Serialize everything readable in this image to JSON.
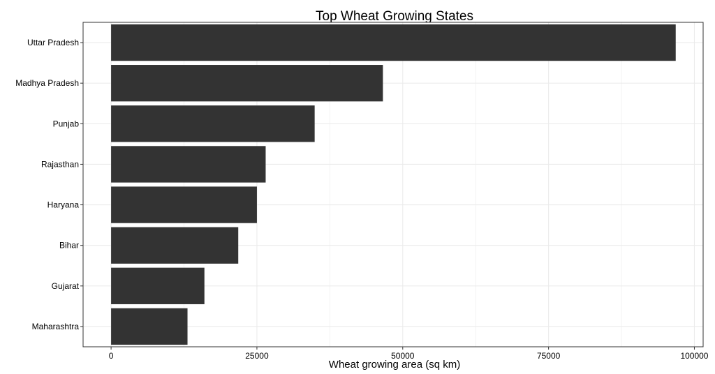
{
  "chart_data": {
    "type": "bar",
    "orientation": "horizontal",
    "title": "Top Wheat Growing States",
    "xlabel": "Wheat growing area (sq km)",
    "ylabel": "",
    "categories": [
      "Uttar Pradesh",
      "Madhya Pradesh",
      "Punjab",
      "Rajasthan",
      "Haryana",
      "Bihar",
      "Gujarat",
      "Maharashtra"
    ],
    "values": [
      96800,
      46600,
      34900,
      26500,
      25000,
      21800,
      16000,
      13100
    ],
    "xlim": [
      -4800,
      101500
    ],
    "xticks": [
      0,
      25000,
      50000,
      75000,
      100000
    ],
    "xtick_labels": [
      "0",
      "25000",
      "50000",
      "75000",
      "100000"
    ],
    "grid": true,
    "bar_color": "#333333",
    "grid_color": "#ebebeb",
    "panel_border_color": "#333333"
  }
}
